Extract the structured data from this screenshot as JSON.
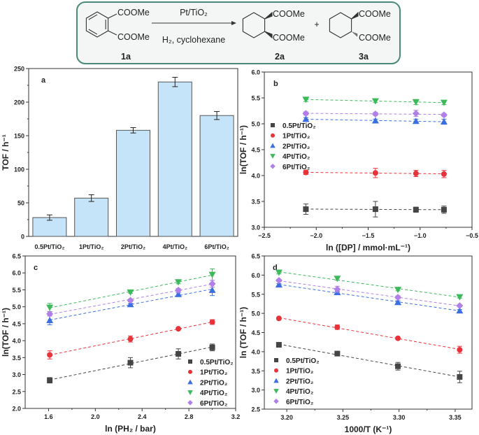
{
  "scheme": {
    "reactant_top": "COOMe",
    "reactant_bottom": "COOMe",
    "reactant_label": "1a",
    "catalyst": "Pt/TiO₂",
    "conditions": "H₂, cyclohexane",
    "product1_top": "COOMe",
    "product1_bottom": "COOMe",
    "product1_label": "2a",
    "plus": "+",
    "product2_top": "COOMe",
    "product2_bottom": "COOMe",
    "product2_label": "3a",
    "border_color": "#4a8a7a"
  },
  "series_styles": [
    {
      "name": "0.5Pt/TiO₂",
      "color": "#454545",
      "marker": "square"
    },
    {
      "name": "1Pt/TiO₂",
      "color": "#e8333b",
      "marker": "circle"
    },
    {
      "name": "2Pt/TiO₂",
      "color": "#3b6fe0",
      "marker": "triangle-up"
    },
    {
      "name": "4Pt/TiO₂",
      "color": "#3cb95a",
      "marker": "triangle-down"
    },
    {
      "name": "6Pt/TiO₂",
      "color": "#b07fe8",
      "marker": "diamond"
    }
  ],
  "chart_data": [
    {
      "panel": "a",
      "type": "bar",
      "categories": [
        "0.5Pt/TiO₂",
        "1Pt/TiO₂",
        "2Pt/TiO₂",
        "4Pt/TiO₂",
        "6Pt/TiO₂"
      ],
      "values": [
        28,
        57,
        158,
        230,
        180
      ],
      "errors": [
        4,
        5,
        4,
        7,
        6
      ],
      "xlabel": "",
      "ylabel": "TOF / h⁻¹",
      "ylim": [
        0,
        250
      ],
      "yticks": [
        0,
        50,
        100,
        150,
        200,
        250
      ],
      "bar_color": "#c5e4f9"
    },
    {
      "panel": "b",
      "type": "scatter",
      "xlabel": "ln ([DP] / mmol·mL⁻¹)",
      "ylabel": "ln(TOF / h⁻¹)",
      "xlim": [
        -2.5,
        -0.5
      ],
      "ylim": [
        3.0,
        6.0
      ],
      "xticks": [
        "-2.5",
        "-2.0",
        "-1.5",
        "-1.0",
        "-0.5"
      ],
      "yticks": [
        "3.0",
        "3.5",
        "4.0",
        "4.5",
        "5.0",
        "5.5",
        "6.0"
      ],
      "legend": "left",
      "x": [
        -2.1,
        -1.43,
        -1.04,
        -0.77
      ],
      "series": [
        {
          "name": "0.5Pt/TiO₂",
          "values": [
            3.35,
            3.35,
            3.34,
            3.34
          ],
          "errors": [
            0.1,
            0.15,
            0.05,
            0.07
          ]
        },
        {
          "name": "1Pt/TiO₂",
          "values": [
            4.06,
            4.05,
            4.04,
            4.03
          ],
          "errors": [
            0.04,
            0.09,
            0.06,
            0.07
          ]
        },
        {
          "name": "2Pt/TiO₂",
          "values": [
            5.09,
            5.06,
            5.05,
            5.04
          ],
          "errors": [
            0.03,
            0.03,
            0.04,
            0.05
          ]
        },
        {
          "name": "4Pt/TiO₂",
          "values": [
            5.47,
            5.44,
            5.42,
            5.41
          ],
          "errors": [
            0.04,
            0.03,
            0.05,
            0.04
          ]
        },
        {
          "name": "6Pt/TiO₂",
          "values": [
            5.2,
            5.19,
            5.2,
            5.17
          ],
          "errors": [
            0.03,
            0.03,
            0.06,
            0.03
          ]
        }
      ]
    },
    {
      "panel": "c",
      "type": "scatter",
      "xlabel": "ln (PH₂ / bar)",
      "ylabel": "ln(TOF / h⁻¹)",
      "xlim": [
        1.4,
        3.2
      ],
      "ylim": [
        2.0,
        6.5
      ],
      "xticks": [
        "1.6",
        "2.0",
        "2.4",
        "2.8",
        "3.2"
      ],
      "yticks": [
        "2.0",
        "2.5",
        "3.0",
        "3.5",
        "4.0",
        "4.5",
        "5.0",
        "5.5",
        "6.0",
        "6.5"
      ],
      "legend": "bottom-right",
      "x": [
        1.61,
        2.3,
        2.71,
        3.0
      ],
      "series": [
        {
          "name": "0.5Pt/TiO₂",
          "values": [
            2.83,
            3.35,
            3.61,
            3.8
          ],
          "errors": [
            0.08,
            0.15,
            0.15,
            0.1
          ]
        },
        {
          "name": "1Pt/TiO₂",
          "values": [
            3.58,
            4.05,
            4.35,
            4.55
          ],
          "errors": [
            0.12,
            0.09,
            0.03,
            0.07
          ]
        },
        {
          "name": "2Pt/TiO₂",
          "values": [
            4.6,
            5.07,
            5.37,
            5.49
          ],
          "errors": [
            0.13,
            0.03,
            0.04,
            0.16
          ]
        },
        {
          "name": "4Pt/TiO₂",
          "values": [
            4.98,
            5.43,
            5.73,
            5.95
          ],
          "errors": [
            0.12,
            0.03,
            0.05,
            0.17
          ]
        },
        {
          "name": "6Pt/TiO₂",
          "values": [
            4.79,
            5.19,
            5.49,
            5.68
          ],
          "errors": [
            0.06,
            0.04,
            0.05,
            0.1
          ]
        }
      ]
    },
    {
      "panel": "d",
      "type": "scatter",
      "xlabel": "1000/T (K⁻¹)",
      "ylabel": "ln (TOF / h⁻¹)",
      "xlim": [
        3.18,
        3.365
      ],
      "ylim": [
        2.5,
        6.5
      ],
      "xticks": [
        "3.20",
        "3.25",
        "3.30",
        "3.35"
      ],
      "yticks": [
        "2.5",
        "3.0",
        "3.5",
        "4.0",
        "4.5",
        "5.0",
        "5.5",
        "6.0",
        "6.5"
      ],
      "legend": "bottom-left",
      "x": [
        3.193,
        3.245,
        3.299,
        3.354
      ],
      "series": [
        {
          "name": "0.5Pt/TiO₂",
          "values": [
            4.18,
            3.95,
            3.62,
            3.34
          ],
          "errors": [
            0.03,
            0.04,
            0.1,
            0.15
          ]
        },
        {
          "name": "1Pt/TiO₂",
          "values": [
            4.87,
            4.64,
            4.35,
            4.05
          ],
          "errors": [
            0.03,
            0.06,
            0.03,
            0.09
          ]
        },
        {
          "name": "2Pt/TiO₂",
          "values": [
            5.75,
            5.55,
            5.29,
            5.07
          ],
          "errors": [
            0.03,
            0.03,
            0.04,
            0.03
          ]
        },
        {
          "name": "4Pt/TiO₂",
          "values": [
            6.07,
            5.91,
            5.62,
            5.43
          ],
          "errors": [
            0.04,
            0.04,
            0.03,
            0.03
          ]
        },
        {
          "name": "6Pt/TiO₂",
          "values": [
            5.86,
            5.63,
            5.42,
            5.2
          ],
          "errors": [
            0.03,
            0.08,
            0.04,
            0.03
          ]
        }
      ]
    }
  ]
}
